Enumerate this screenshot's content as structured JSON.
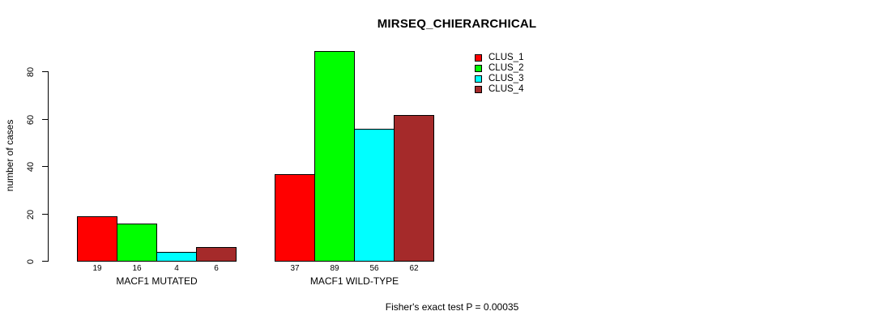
{
  "page": {
    "background": "#ffffff",
    "text_color": "#000000"
  },
  "chart_data": {
    "type": "bar",
    "title": "MIRSEQ_CHIERARCHICAL",
    "ylabel": "number of cases",
    "xlabel": "",
    "categories": [
      "MACF1 MUTATED",
      "MACF1 WILD-TYPE"
    ],
    "series": [
      {
        "name": "CLUS_1",
        "color": "#FF0000",
        "values": [
          19,
          37
        ]
      },
      {
        "name": "CLUS_2",
        "color": "#00FF00",
        "values": [
          16,
          89
        ]
      },
      {
        "name": "CLUS_3",
        "color": "#00FFFF",
        "values": [
          4,
          56
        ]
      },
      {
        "name": "CLUS_4",
        "color": "#A52A2A",
        "values": [
          6,
          62
        ]
      }
    ],
    "bar_value_labels": [
      [
        19,
        16,
        4,
        6
      ],
      [
        37,
        89,
        56,
        62
      ]
    ],
    "yticks": [
      0,
      20,
      40,
      60,
      80
    ],
    "ylim": [
      0,
      89
    ],
    "grid": false,
    "legend_position": "top-right",
    "bar_border_color": "#000000",
    "annotation": "Fisher's exact test P = 0.00035"
  }
}
